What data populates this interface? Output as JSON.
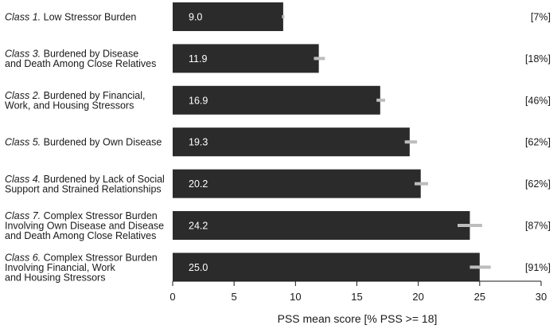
{
  "chart_data": {
    "type": "bar",
    "orientation": "horizontal",
    "xlabel": "PSS mean score [% PSS >= 18]",
    "xlim": [
      0,
      30
    ],
    "xticks": [
      0,
      5,
      10,
      15,
      20,
      25,
      30
    ],
    "grid": false,
    "legend": "none",
    "colors": {
      "bar": "#2b2b2b",
      "error_bar": "#bdbdbd",
      "text": "#1a1a1a",
      "value_text": "#ffffff"
    },
    "categories": [
      {
        "class_name": "Class 1.",
        "lines": [
          "Low Stressor Burden"
        ],
        "value": 9.0,
        "value_label": "9.0",
        "ci": [
          8.9,
          9.1
        ],
        "percent_label": "[7%]"
      },
      {
        "class_name": "Class 3.",
        "lines": [
          "Burdened by Disease",
          "and Death Among Close Relatives"
        ],
        "value": 11.9,
        "value_label": "11.9",
        "ci": [
          11.5,
          12.4
        ],
        "percent_label": "[18%]"
      },
      {
        "class_name": "Class 2.",
        "lines": [
          "Burdened by Financial,",
          "Work, and Housing Stressors"
        ],
        "value": 16.9,
        "value_label": "16.9",
        "ci": [
          16.6,
          17.3
        ],
        "percent_label": "[46%]"
      },
      {
        "class_name": "Class 5.",
        "lines": [
          "Burdened by Own Disease"
        ],
        "value": 19.3,
        "value_label": "19.3",
        "ci": [
          18.9,
          19.9
        ],
        "percent_label": "[62%]"
      },
      {
        "class_name": "Class 4.",
        "lines": [
          "Burdened by Lack of Social",
          "Support and Strained Relationships"
        ],
        "value": 20.2,
        "value_label": "20.2",
        "ci": [
          19.7,
          20.8
        ],
        "percent_label": "[62%]"
      },
      {
        "class_name": "Class 7.",
        "lines": [
          "Complex Stressor Burden",
          "Involving Own Disease and Disease",
          "and Death Among Close Relatives"
        ],
        "value": 24.2,
        "value_label": "24.2",
        "ci": [
          23.2,
          25.2
        ],
        "percent_label": "[87%]"
      },
      {
        "class_name": "Class 6.",
        "lines": [
          "Complex Stressor Burden",
          "Involving Financial, Work",
          "and Housing Stressors"
        ],
        "value": 25.0,
        "value_label": "25.0",
        "ci": [
          24.2,
          25.9
        ],
        "percent_label": "[91%]"
      }
    ]
  }
}
